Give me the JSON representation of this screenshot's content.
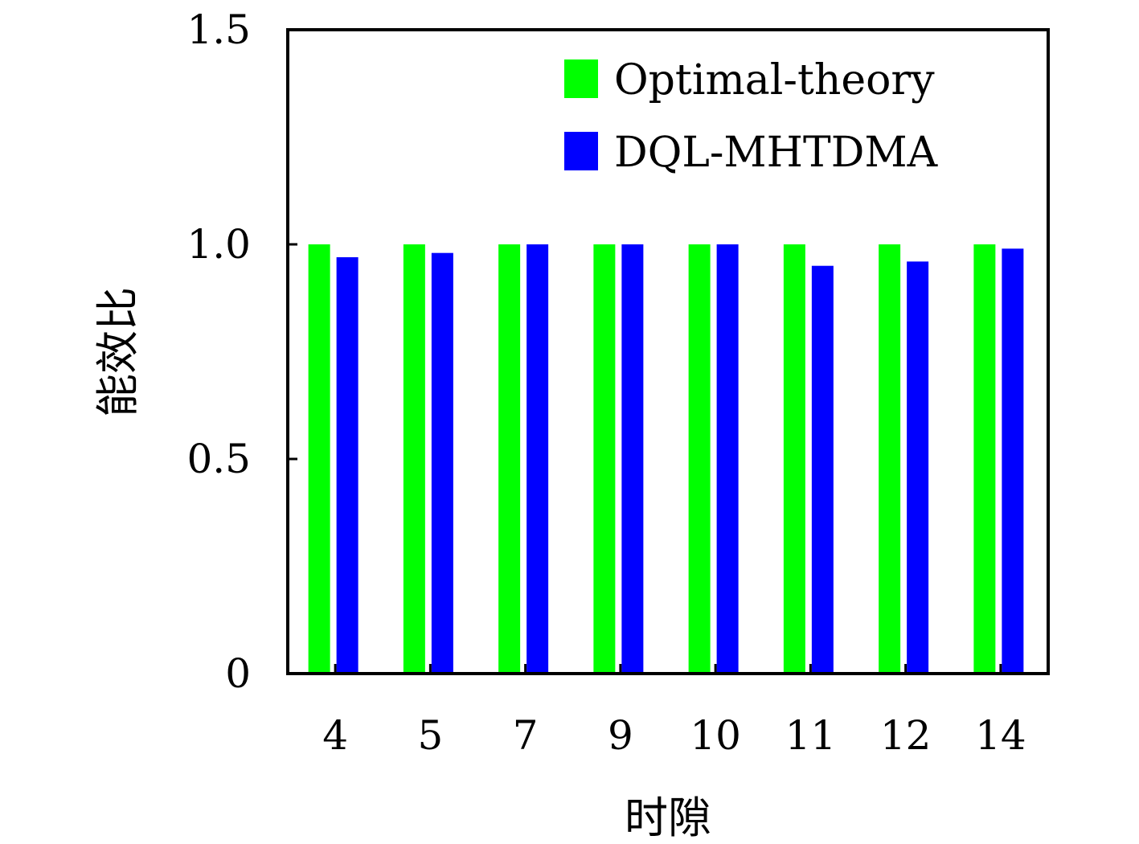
{
  "chart_data": {
    "type": "bar",
    "title": "",
    "xlabel": "时隙",
    "ylabel": "能效比",
    "categories": [
      "4",
      "5",
      "7",
      "9",
      "10",
      "11",
      "12",
      "14"
    ],
    "ylim": [
      0,
      1.5
    ],
    "yticks": [
      "0",
      "0.5",
      "1.0",
      "1.5"
    ],
    "grid": false,
    "legend_position": "top-right",
    "series": [
      {
        "name": "Optimal-theory",
        "color": "#00ff00",
        "values": [
          1.0,
          1.0,
          1.0,
          1.0,
          1.0,
          1.0,
          1.0,
          1.0
        ]
      },
      {
        "name": "DQL-MHTDMA",
        "color": "#0000ff",
        "values": [
          0.97,
          0.98,
          1.0,
          1.0,
          1.0,
          0.95,
          0.96,
          0.99
        ]
      }
    ]
  }
}
